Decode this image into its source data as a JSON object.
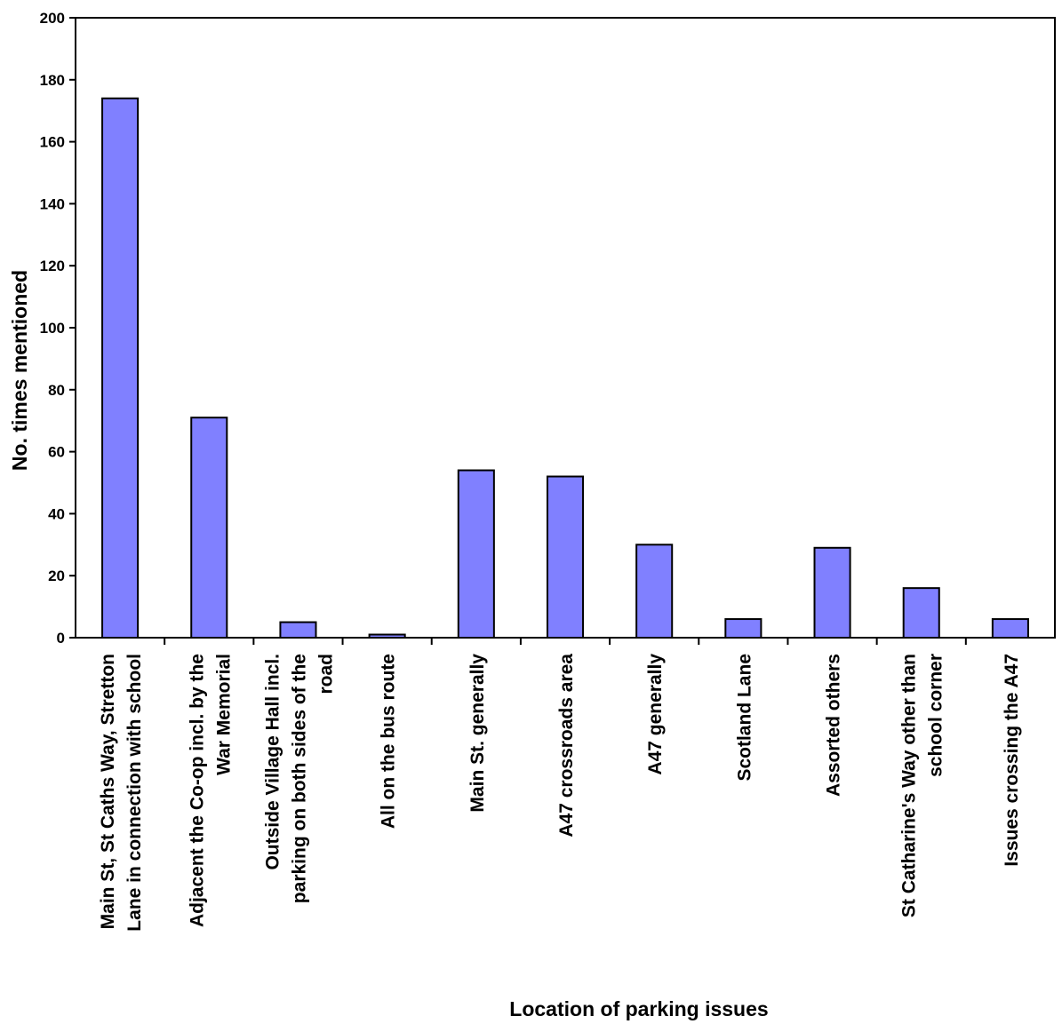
{
  "chart_data": {
    "type": "bar",
    "title": "",
    "xlabel": "Location of parking issues",
    "ylabel": "No. times mentioned",
    "ylim": [
      0,
      200
    ],
    "yticks": [
      0,
      20,
      40,
      60,
      80,
      100,
      120,
      140,
      160,
      180,
      200
    ],
    "grid": false,
    "legend": "none",
    "bar_color": "#8080ff",
    "bar_edge_color": "#000000",
    "categories": [
      [
        "Main St, St Caths Way, Stretton",
        "Lane in connection with school"
      ],
      [
        "Adjacent the  Co-op incl. by the",
        "War Memorial"
      ],
      [
        "Outside Village Hall incl.",
        "parking on both sides of the",
        "road"
      ],
      [
        "All on the bus route"
      ],
      [
        "Main St. generally"
      ],
      [
        "A47 crossroads area"
      ],
      [
        "A47 generally"
      ],
      [
        "Scotland Lane"
      ],
      [
        "Assorted others"
      ],
      [
        "St Catharine's Way other than",
        "school corner"
      ],
      [
        "Issues crossing the A47"
      ]
    ],
    "values": [
      174,
      71,
      5,
      1,
      54,
      52,
      30,
      6,
      29,
      16,
      6
    ]
  }
}
